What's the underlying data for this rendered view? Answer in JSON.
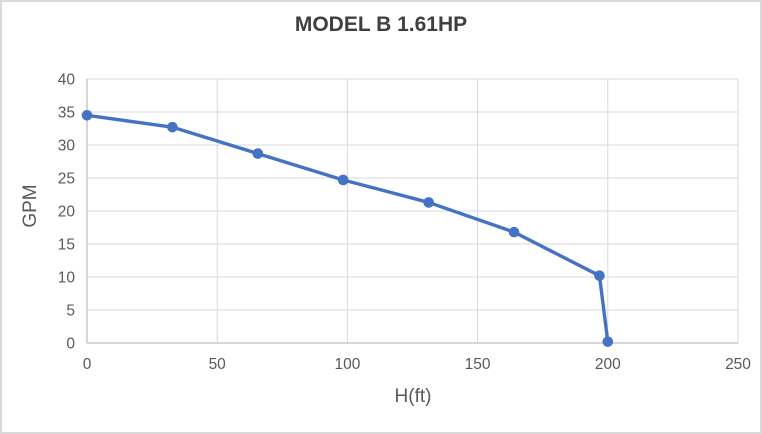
{
  "chart": {
    "background": "#ffffff",
    "border_color": "#d9d9d9"
  },
  "chart_data": {
    "type": "line",
    "title": "MODEL B 1.61HP",
    "xlabel": "H(ft)",
    "ylabel": "GPM",
    "series": [
      {
        "name": "MODEL B 1.61HP",
        "x": [
          0,
          32.8,
          65.6,
          98.4,
          131.2,
          164,
          196.8,
          200
        ],
        "y": [
          34.5,
          32.7,
          28.7,
          24.7,
          21.3,
          16.8,
          10.2,
          0.2
        ],
        "color": "#4472C4",
        "marker": "circle"
      }
    ],
    "xlim": [
      0,
      250
    ],
    "ylim": [
      0,
      40
    ],
    "xticks": [
      0,
      50,
      100,
      150,
      200,
      250
    ],
    "yticks": [
      0,
      5,
      10,
      15,
      20,
      25,
      30,
      35,
      40
    ],
    "grid": true,
    "legend": false,
    "gridline_color": "#d9d9d9",
    "axis_line_color": "#c9c9c9",
    "tick_label_color": "#595959",
    "axis_title_color": "#595959",
    "title_color": "#3f3f3f"
  }
}
